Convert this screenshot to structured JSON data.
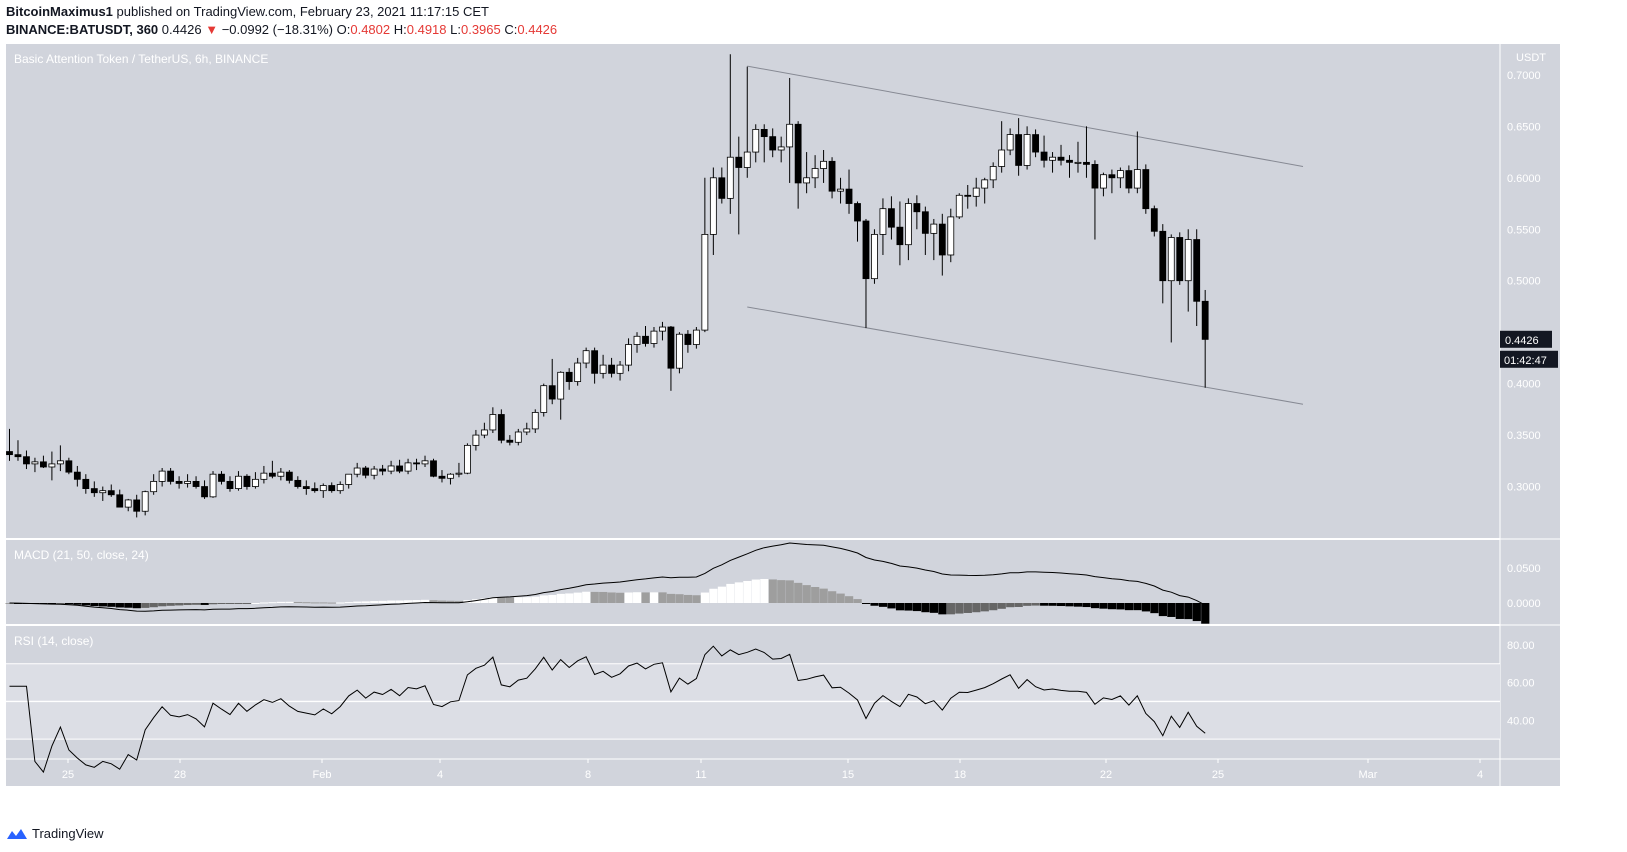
{
  "header": {
    "publisher": "BitcoinMaximus1",
    "published_text": "published on TradingView.com, February 23, 2021 11:17:15 CET",
    "symbol": "BINANCE:BATUSDT, 360",
    "price": "0.4426",
    "change": "−0.0992 (−18.31%)",
    "o_label": "O:",
    "o_value": "0.4802",
    "h_label": "H:",
    "h_value": "0.4918",
    "l_label": "L:",
    "l_value": "0.3965",
    "c_label": "C:",
    "c_value": "0.4426"
  },
  "footer": {
    "brand": "TradingView"
  },
  "colors": {
    "background": "#d1d4dc",
    "candle_up": "#ffffff",
    "candle_down": "#000000",
    "hist_light": "#9e9e9e",
    "accent_red": "#e53935"
  },
  "chart_data": [
    {
      "type": "candlestick",
      "title": "Basic Attention Token / TetherUS, 6h, BINANCE",
      "y_unit": "USDT",
      "y_ticks": [
        0.3,
        0.35,
        0.4,
        0.45,
        0.5,
        0.55,
        0.6,
        0.65,
        0.7
      ],
      "y_tick_labels": [
        "0.3000",
        "0.3500",
        "0.4000",
        "0.4426",
        "0.5000",
        "0.5500",
        "0.6000",
        "0.6500",
        "0.7000"
      ],
      "ylim": [
        0.25,
        0.73
      ],
      "x_ticks": [
        "25",
        "28",
        "Feb",
        "4",
        "8",
        "11",
        "15",
        "18",
        "22",
        "25",
        "Mar",
        "4"
      ],
      "last_price_label": "0.4426",
      "countdown_label": "01:42:47",
      "description_ohlc": [
        [
          0.334,
          0.356,
          0.325,
          0.331
        ],
        [
          0.331,
          0.345,
          0.325,
          0.329
        ],
        [
          0.329,
          0.335,
          0.317,
          0.322
        ],
        [
          0.322,
          0.328,
          0.314,
          0.324
        ],
        [
          0.324,
          0.33,
          0.318,
          0.319
        ],
        [
          0.319,
          0.334,
          0.306,
          0.322
        ],
        [
          0.322,
          0.34,
          0.315,
          0.325
        ],
        [
          0.325,
          0.328,
          0.312,
          0.314
        ],
        [
          0.314,
          0.32,
          0.3,
          0.307
        ],
        [
          0.307,
          0.312,
          0.293,
          0.298
        ],
        [
          0.298,
          0.305,
          0.29,
          0.294
        ],
        [
          0.294,
          0.3,
          0.286,
          0.296
        ],
        [
          0.296,
          0.302,
          0.29,
          0.292
        ],
        [
          0.292,
          0.297,
          0.28,
          0.28
        ],
        [
          0.28,
          0.288,
          0.276,
          0.287
        ],
        [
          0.287,
          0.292,
          0.27,
          0.276
        ],
        [
          0.276,
          0.296,
          0.272,
          0.295
        ],
        [
          0.295,
          0.312,
          0.292,
          0.305
        ],
        [
          0.305,
          0.318,
          0.3,
          0.315
        ],
        [
          0.315,
          0.318,
          0.302,
          0.305
        ],
        [
          0.305,
          0.31,
          0.298,
          0.303
        ],
        [
          0.303,
          0.312,
          0.299,
          0.305
        ],
        [
          0.305,
          0.31,
          0.298,
          0.3
        ],
        [
          0.3,
          0.306,
          0.288,
          0.29
        ],
        [
          0.29,
          0.315,
          0.289,
          0.312
        ],
        [
          0.312,
          0.315,
          0.302,
          0.305
        ],
        [
          0.305,
          0.31,
          0.295,
          0.298
        ],
        [
          0.298,
          0.315,
          0.296,
          0.31
        ],
        [
          0.31,
          0.312,
          0.297,
          0.3
        ],
        [
          0.3,
          0.314,
          0.298,
          0.307
        ],
        [
          0.307,
          0.32,
          0.303,
          0.313
        ],
        [
          0.313,
          0.325,
          0.308,
          0.31
        ],
        [
          0.31,
          0.318,
          0.306,
          0.314
        ],
        [
          0.314,
          0.316,
          0.303,
          0.306
        ],
        [
          0.306,
          0.31,
          0.298,
          0.3
        ],
        [
          0.3,
          0.306,
          0.292,
          0.298
        ],
        [
          0.298,
          0.304,
          0.294,
          0.296
        ],
        [
          0.296,
          0.303,
          0.289,
          0.301
        ],
        [
          0.301,
          0.304,
          0.294,
          0.296
        ],
        [
          0.296,
          0.305,
          0.293,
          0.302
        ],
        [
          0.302,
          0.312,
          0.298,
          0.312
        ],
        [
          0.312,
          0.323,
          0.309,
          0.318
        ],
        [
          0.318,
          0.32,
          0.308,
          0.311
        ],
        [
          0.311,
          0.32,
          0.307,
          0.317
        ],
        [
          0.317,
          0.321,
          0.311,
          0.315
        ],
        [
          0.315,
          0.325,
          0.312,
          0.32
        ],
        [
          0.32,
          0.326,
          0.313,
          0.315
        ],
        [
          0.315,
          0.327,
          0.312,
          0.323
        ],
        [
          0.323,
          0.327,
          0.316,
          0.322
        ],
        [
          0.322,
          0.33,
          0.319,
          0.325
        ],
        [
          0.325,
          0.327,
          0.309,
          0.31
        ],
        [
          0.31,
          0.316,
          0.304,
          0.308
        ],
        [
          0.308,
          0.313,
          0.302,
          0.312
        ],
        [
          0.312,
          0.323,
          0.309,
          0.313
        ],
        [
          0.313,
          0.342,
          0.312,
          0.34
        ],
        [
          0.34,
          0.355,
          0.335,
          0.35
        ],
        [
          0.35,
          0.362,
          0.347,
          0.355
        ],
        [
          0.355,
          0.377,
          0.352,
          0.37
        ],
        [
          0.37,
          0.375,
          0.342,
          0.345
        ],
        [
          0.345,
          0.35,
          0.34,
          0.343
        ],
        [
          0.343,
          0.356,
          0.34,
          0.353
        ],
        [
          0.353,
          0.362,
          0.35,
          0.356
        ],
        [
          0.356,
          0.375,
          0.352,
          0.372
        ],
        [
          0.372,
          0.4,
          0.368,
          0.398
        ],
        [
          0.398,
          0.424,
          0.38,
          0.385
        ],
        [
          0.385,
          0.412,
          0.365,
          0.411
        ],
        [
          0.411,
          0.415,
          0.394,
          0.402
        ],
        [
          0.402,
          0.425,
          0.398,
          0.42
        ],
        [
          0.42,
          0.435,
          0.415,
          0.432
        ],
        [
          0.432,
          0.435,
          0.4,
          0.41
        ],
        [
          0.41,
          0.428,
          0.405,
          0.418
        ],
        [
          0.418,
          0.425,
          0.406,
          0.41
        ],
        [
          0.41,
          0.422,
          0.403,
          0.418
        ],
        [
          0.418,
          0.444,
          0.412,
          0.438
        ],
        [
          0.438,
          0.45,
          0.43,
          0.446
        ],
        [
          0.446,
          0.456,
          0.436,
          0.439
        ],
        [
          0.439,
          0.455,
          0.435,
          0.451
        ],
        [
          0.451,
          0.46,
          0.442,
          0.455
        ],
        [
          0.455,
          0.456,
          0.393,
          0.415
        ],
        [
          0.415,
          0.45,
          0.41,
          0.448
        ],
        [
          0.448,
          0.452,
          0.43,
          0.438
        ],
        [
          0.438,
          0.455,
          0.434,
          0.452
        ],
        [
          0.452,
          0.6,
          0.45,
          0.545
        ],
        [
          0.545,
          0.61,
          0.525,
          0.6
        ],
        [
          0.6,
          0.61,
          0.575,
          0.58
        ],
        [
          0.58,
          0.72,
          0.565,
          0.62
        ],
        [
          0.62,
          0.64,
          0.545,
          0.61
        ],
        [
          0.61,
          0.708,
          0.6,
          0.625
        ],
        [
          0.625,
          0.652,
          0.615,
          0.647
        ],
        [
          0.647,
          0.652,
          0.615,
          0.64
        ],
        [
          0.64,
          0.648,
          0.62,
          0.627
        ],
        [
          0.627,
          0.64,
          0.615,
          0.63
        ],
        [
          0.63,
          0.697,
          0.595,
          0.652
        ],
        [
          0.652,
          0.655,
          0.57,
          0.595
        ],
        [
          0.595,
          0.625,
          0.585,
          0.6
        ],
        [
          0.6,
          0.622,
          0.59,
          0.609
        ],
        [
          0.609,
          0.627,
          0.595,
          0.616
        ],
        [
          0.616,
          0.62,
          0.58,
          0.587
        ],
        [
          0.587,
          0.6,
          0.575,
          0.589
        ],
        [
          0.589,
          0.608,
          0.565,
          0.575
        ],
        [
          0.575,
          0.577,
          0.538,
          0.558
        ],
        [
          0.558,
          0.56,
          0.454,
          0.502
        ],
        [
          0.502,
          0.55,
          0.497,
          0.545
        ],
        [
          0.545,
          0.58,
          0.525,
          0.57
        ],
        [
          0.57,
          0.582,
          0.54,
          0.552
        ],
        [
          0.552,
          0.577,
          0.515,
          0.535
        ],
        [
          0.535,
          0.58,
          0.52,
          0.575
        ],
        [
          0.575,
          0.583,
          0.55,
          0.567
        ],
        [
          0.567,
          0.572,
          0.525,
          0.546
        ],
        [
          0.546,
          0.56,
          0.52,
          0.555
        ],
        [
          0.555,
          0.565,
          0.505,
          0.525
        ],
        [
          0.525,
          0.57,
          0.518,
          0.562
        ],
        [
          0.562,
          0.585,
          0.56,
          0.583
        ],
        [
          0.583,
          0.593,
          0.57,
          0.582
        ],
        [
          0.582,
          0.6,
          0.572,
          0.59
        ],
        [
          0.59,
          0.6,
          0.575,
          0.598
        ],
        [
          0.598,
          0.615,
          0.59,
          0.611
        ],
        [
          0.611,
          0.655,
          0.605,
          0.627
        ],
        [
          0.627,
          0.648,
          0.622,
          0.642
        ],
        [
          0.642,
          0.658,
          0.602,
          0.612
        ],
        [
          0.612,
          0.65,
          0.608,
          0.642
        ],
        [
          0.642,
          0.647,
          0.62,
          0.625
        ],
        [
          0.625,
          0.641,
          0.61,
          0.617
        ],
        [
          0.617,
          0.625,
          0.605,
          0.62
        ],
        [
          0.62,
          0.632,
          0.612,
          0.617
        ],
        [
          0.617,
          0.622,
          0.6,
          0.615
        ],
        [
          0.615,
          0.635,
          0.605,
          0.615
        ],
        [
          0.615,
          0.65,
          0.6,
          0.613
        ],
        [
          0.613,
          0.617,
          0.54,
          0.59
        ],
        [
          0.59,
          0.605,
          0.582,
          0.603
        ],
        [
          0.603,
          0.608,
          0.585,
          0.6
        ],
        [
          0.6,
          0.61,
          0.59,
          0.607
        ],
        [
          0.607,
          0.612,
          0.585,
          0.59
        ],
        [
          0.59,
          0.645,
          0.585,
          0.608
        ],
        [
          0.608,
          0.613,
          0.565,
          0.57
        ],
        [
          0.57,
          0.573,
          0.543,
          0.548
        ],
        [
          0.548,
          0.555,
          0.478,
          0.5
        ],
        [
          0.5,
          0.545,
          0.44,
          0.542
        ],
        [
          0.542,
          0.547,
          0.496,
          0.5
        ],
        [
          0.5,
          0.55,
          0.47,
          0.54
        ],
        [
          0.54,
          0.55,
          0.456,
          0.48
        ],
        [
          0.48,
          0.491,
          0.396,
          0.443
        ]
      ]
    },
    {
      "type": "line+bar",
      "title": "MACD (21, 50, close, 24)",
      "y_tick_labels": [
        "0.0500",
        "0.0000"
      ],
      "y_ticks": [
        0.05,
        0.0
      ],
      "ylim": [
        -0.03,
        0.09
      ]
    },
    {
      "type": "line",
      "title": "RSI (14, close)",
      "y_tick_labels": [
        "80.00",
        "60.00",
        "40.00"
      ],
      "y_ticks": [
        80,
        60,
        40
      ],
      "ylim": [
        20,
        90
      ]
    }
  ]
}
